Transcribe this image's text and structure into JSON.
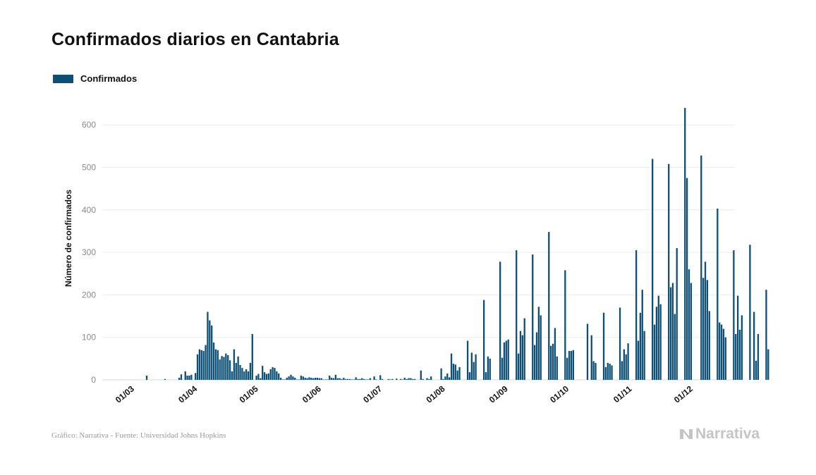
{
  "title": "Confirmados diarios en Cantabria",
  "legend": {
    "label": "Confirmados",
    "color": "#0e4f75"
  },
  "footer": {
    "source": "Gráfico: Narrativa - Fuente: Universidad Johns Hopkins"
  },
  "logo": {
    "text": "Narrativa",
    "icon": "narrativa-n-icon"
  },
  "chart_data": {
    "type": "bar",
    "ylabel": "Número de confirmados",
    "xlabel": "",
    "ylim": [
      0,
      670
    ],
    "yticks": [
      0,
      100,
      200,
      300,
      400,
      500,
      600
    ],
    "xtick_labels": [
      "01/03",
      "01/04",
      "01/05",
      "01/06",
      "01/07",
      "01/08",
      "01/09",
      "01/10",
      "01/11",
      "01/12"
    ],
    "xtick_day_index": [
      0,
      31,
      61,
      92,
      122,
      153,
      184,
      214,
      245,
      275
    ],
    "start_date": "01/03",
    "series": [
      {
        "name": "Confirmados",
        "values": [
          0,
          0,
          0,
          0,
          0,
          0,
          0,
          0,
          10,
          0,
          0,
          0,
          0,
          0,
          0,
          0,
          0,
          2,
          0,
          0,
          0,
          0,
          0,
          0,
          5,
          13,
          0,
          20,
          10,
          10,
          12,
          0,
          16,
          60,
          72,
          70,
          68,
          82,
          160,
          140,
          128,
          88,
          72,
          70,
          48,
          56,
          54,
          62,
          58,
          46,
          20,
          72,
          40,
          55,
          35,
          28,
          20,
          25,
          20,
          40,
          108,
          0,
          10,
          14,
          4,
          33,
          18,
          14,
          15,
          25,
          30,
          28,
          20,
          15,
          5,
          1,
          1,
          5,
          8,
          12,
          8,
          5,
          1,
          1,
          10,
          8,
          5,
          4,
          6,
          5,
          4,
          5,
          5,
          4,
          4,
          1,
          1,
          1,
          10,
          5,
          4,
          12,
          4,
          4,
          2,
          5,
          2,
          2,
          2,
          1,
          1,
          6,
          2,
          2,
          4,
          2,
          1,
          1,
          4,
          0,
          8,
          1,
          0,
          11,
          2,
          0,
          0,
          2,
          1,
          2,
          0,
          3,
          0,
          2,
          1,
          5,
          2,
          4,
          4,
          2,
          2,
          0,
          0,
          22,
          2,
          0,
          4,
          2,
          8,
          0,
          0,
          0,
          0,
          27,
          2,
          8,
          15,
          6,
          62,
          38,
          36,
          22,
          30,
          0,
          0,
          0,
          92,
          18,
          64,
          42,
          60,
          0,
          0,
          0,
          188,
          18,
          55,
          50,
          0,
          0,
          0,
          0,
          278,
          52,
          88,
          92,
          95,
          0,
          0,
          0,
          305,
          62,
          115,
          105,
          145,
          0,
          0,
          0,
          295,
          82,
          112,
          172,
          152,
          0,
          0,
          0,
          348,
          80,
          85,
          122,
          55,
          0,
          0,
          0,
          258,
          52,
          68,
          68,
          70,
          0,
          0,
          0,
          0,
          0,
          0,
          132,
          0,
          105,
          44,
          40,
          0,
          0,
          0,
          158,
          30,
          40,
          38,
          34,
          0,
          0,
          0,
          170,
          44,
          72,
          60,
          86,
          0,
          0,
          0,
          305,
          92,
          158,
          212,
          115,
          0,
          0,
          0,
          520,
          130,
          172,
          198,
          178,
          0,
          0,
          0,
          508,
          218,
          228,
          155,
          310,
          0,
          0,
          0,
          640,
          475,
          260,
          228,
          0,
          0,
          0,
          0,
          528,
          240,
          278,
          235,
          162,
          0,
          0,
          0,
          403,
          135,
          130,
          120,
          100,
          0,
          0,
          0,
          305,
          108,
          198,
          118,
          152,
          0,
          0,
          0,
          318,
          0,
          160,
          45,
          108,
          0,
          0,
          0,
          212,
          72
        ]
      }
    ]
  }
}
